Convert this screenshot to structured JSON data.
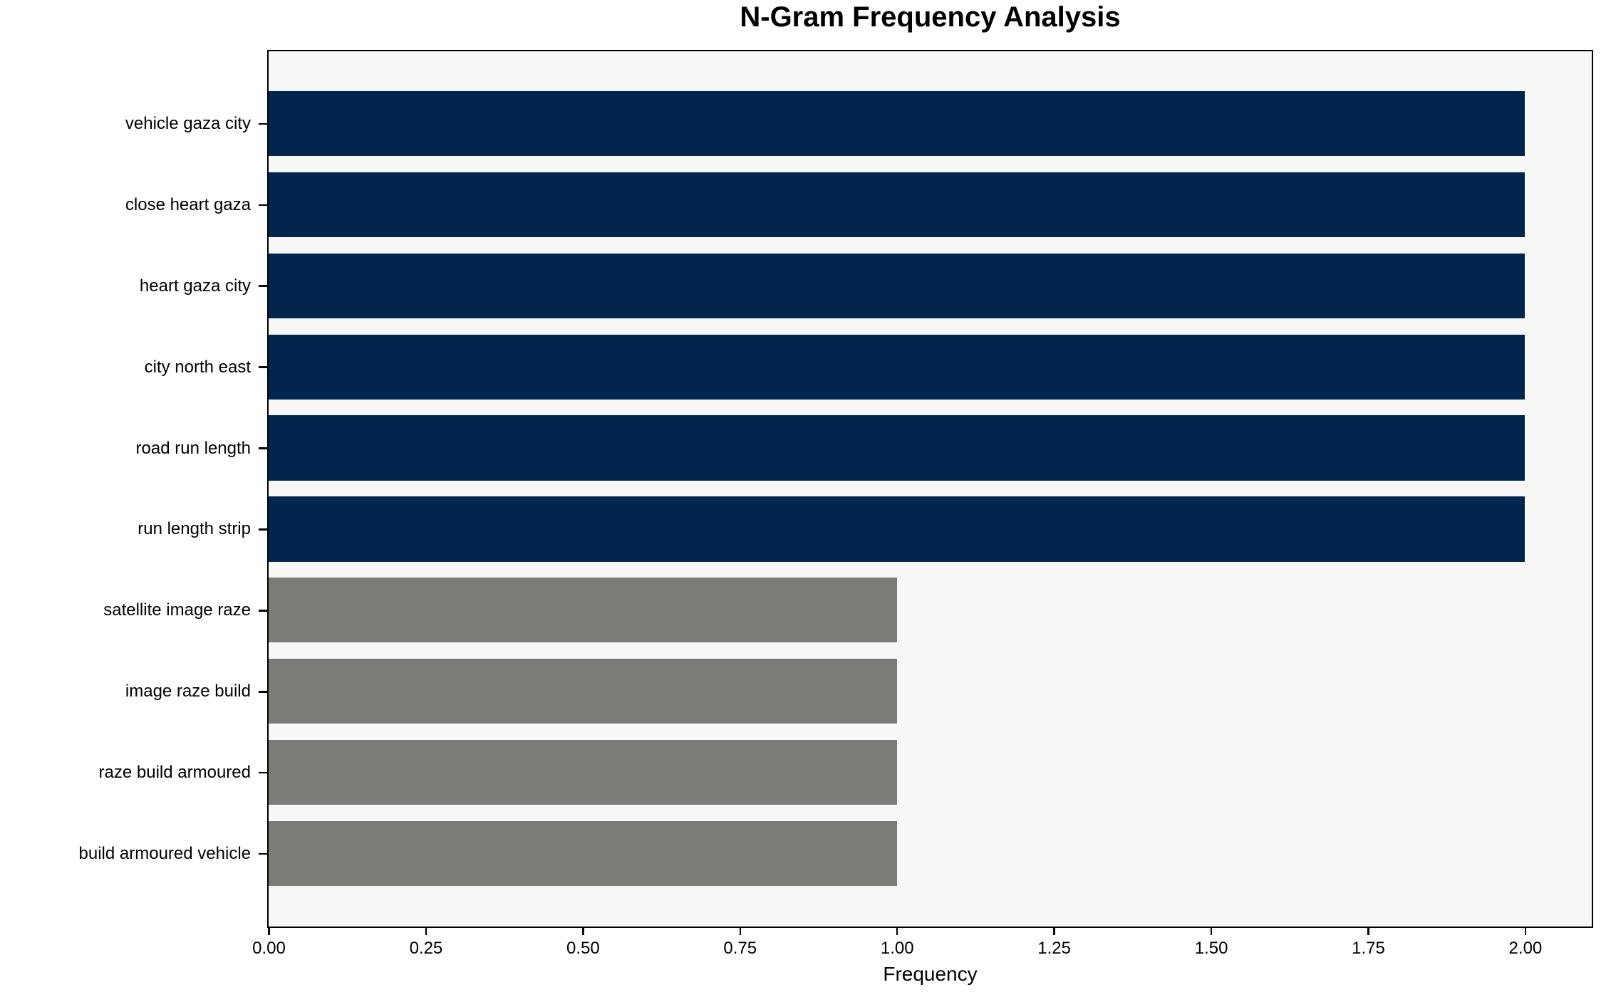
{
  "chart_data": {
    "type": "bar",
    "orientation": "horizontal",
    "title": "N-Gram Frequency Analysis",
    "xlabel": "Frequency",
    "ylabel": "",
    "categories": [
      "vehicle gaza city",
      "close heart gaza",
      "heart gaza city",
      "city north east",
      "road run length",
      "run length strip",
      "satellite image raze",
      "image raze build",
      "raze build armoured",
      "build armoured vehicle"
    ],
    "values": [
      2,
      2,
      2,
      2,
      2,
      2,
      1,
      1,
      1,
      1
    ],
    "bar_colors": [
      "#02254e",
      "#02254e",
      "#02254e",
      "#02254e",
      "#02254e",
      "#02254e",
      "#7b7b78",
      "#7b7b78",
      "#7b7b78",
      "#7b7b78"
    ],
    "xlim": [
      0,
      2.105
    ],
    "xticks": {
      "values": [
        0,
        0.25,
        0.5,
        0.75,
        1.0,
        1.25,
        1.5,
        1.75,
        2.0
      ],
      "labels": [
        "0.00",
        "0.25",
        "0.50",
        "0.75",
        "1.00",
        "1.25",
        "1.50",
        "1.75",
        "2.00"
      ]
    },
    "bar_height_fraction": 0.8,
    "grid": false,
    "legend_position": "none"
  },
  "colors": {
    "bar_primary": "#02254e",
    "bar_secondary": "#7b7b78",
    "plot_background": "#f7f7f6",
    "figure_background": "#ffffff",
    "axis": "#000000"
  }
}
